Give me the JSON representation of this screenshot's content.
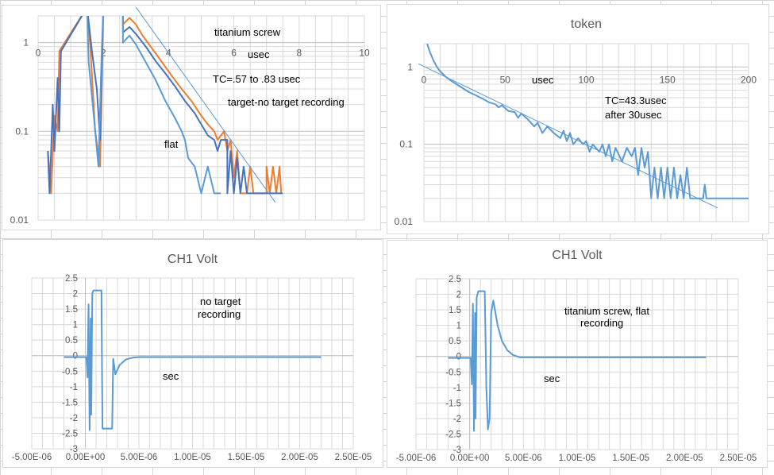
{
  "chart_data": [
    {
      "type": "line",
      "title": "",
      "xlabel": "usec",
      "ylabel": "",
      "xlim": [
        0,
        10
      ],
      "ylim": [
        0.01,
        2
      ],
      "yscale": "log",
      "xticks": [
        "0",
        "2",
        "4",
        "6",
        "8",
        "10"
      ],
      "yticks": [
        "0.01",
        "0.1",
        "1"
      ],
      "grid": true,
      "annotations": [
        "titanium screw",
        "usec",
        "TC=.57 to .83 usec",
        "target-no target recording",
        "flat"
      ],
      "colors": {
        "orange": "#ed7d31",
        "dark_blue": "#4472c4",
        "light_blue": "#5b9bd5"
      },
      "series": [
        {
          "color": "#ed7d31",
          "points": [
            [
              0.3,
              0.06
            ],
            [
              0.4,
              0.02
            ],
            [
              0.5,
              0.15
            ],
            [
              0.6,
              0.1
            ],
            [
              0.65,
              0.8
            ],
            [
              1.5,
              2.5
            ],
            [
              1.6,
              0.9
            ],
            [
              1.75,
              0.1
            ],
            [
              1.9,
              0.04
            ],
            [
              2.0,
              2.5
            ],
            [
              2.6,
              2.5
            ],
            [
              2.6,
              1.6
            ],
            [
              2.8,
              1.9
            ],
            [
              3.0,
              1.6
            ],
            [
              3.2,
              1.2
            ],
            [
              3.5,
              0.85
            ],
            [
              3.8,
              0.6
            ],
            [
              4.1,
              0.42
            ],
            [
              4.4,
              0.3
            ],
            [
              4.7,
              0.22
            ],
            [
              5.0,
              0.15
            ],
            [
              5.2,
              0.12
            ],
            [
              5.4,
              0.1
            ],
            [
              5.5,
              0.08
            ],
            [
              5.7,
              0.1
            ],
            [
              5.8,
              0.06
            ],
            [
              5.9,
              0.08
            ],
            [
              6.0,
              0.03
            ],
            [
              6.1,
              0.06
            ],
            [
              6.2,
              0.02
            ],
            [
              6.4,
              0.02
            ],
            [
              6.5,
              0.04
            ],
            [
              6.6,
              0.02
            ],
            [
              7.0,
              0.02
            ],
            [
              7.0,
              0.04
            ],
            [
              7.1,
              0.02
            ],
            [
              7.2,
              0.04
            ],
            [
              7.3,
              0.02
            ],
            [
              7.4,
              0.04
            ],
            [
              7.45,
              0.02
            ]
          ]
        },
        {
          "color": "#4472c4",
          "points": [
            [
              0.3,
              0.06
            ],
            [
              0.35,
              0.02
            ],
            [
              0.4,
              0.06
            ],
            [
              0.45,
              0.2
            ],
            [
              0.5,
              0.06
            ],
            [
              0.6,
              0.4
            ],
            [
              0.65,
              0.1
            ],
            [
              0.7,
              0.8
            ],
            [
              1.5,
              2.5
            ],
            [
              1.65,
              0.8
            ],
            [
              1.8,
              0.3
            ],
            [
              1.9,
              0.08
            ],
            [
              2.0,
              2.5
            ],
            [
              2.6,
              2.5
            ],
            [
              2.6,
              1.3
            ],
            [
              2.8,
              1.5
            ],
            [
              3.0,
              1.25
            ],
            [
              3.3,
              0.9
            ],
            [
              3.6,
              0.62
            ],
            [
              3.9,
              0.45
            ],
            [
              4.2,
              0.32
            ],
            [
              4.5,
              0.22
            ],
            [
              4.8,
              0.16
            ],
            [
              5.0,
              0.12
            ],
            [
              5.2,
              0.09
            ],
            [
              5.4,
              0.08
            ],
            [
              5.5,
              0.06
            ],
            [
              5.6,
              0.08
            ],
            [
              5.8,
              0.08
            ],
            [
              5.8,
              0.02
            ],
            [
              5.9,
              0.06
            ],
            [
              6.0,
              0.02
            ],
            [
              6.1,
              0.05
            ],
            [
              6.2,
              0.02
            ],
            [
              6.3,
              0.04
            ],
            [
              6.4,
              0.02
            ],
            [
              7.5,
              0.02
            ]
          ]
        },
        {
          "color": "#5b9bd5",
          "points": [
            [
              1.5,
              2.5
            ],
            [
              1.55,
              0.6
            ],
            [
              1.65,
              0.25
            ],
            [
              1.75,
              0.1
            ],
            [
              1.85,
              0.04
            ],
            [
              1.95,
              0.8
            ],
            [
              2.0,
              2.5
            ],
            [
              2.6,
              2.5
            ],
            [
              2.6,
              1.0
            ],
            [
              2.8,
              1.2
            ],
            [
              3.0,
              0.95
            ],
            [
              3.3,
              0.6
            ],
            [
              3.6,
              0.38
            ],
            [
              3.9,
              0.22
            ],
            [
              4.2,
              0.14
            ],
            [
              4.4,
              0.1
            ],
            [
              4.5,
              0.08
            ],
            [
              4.6,
              0.05
            ],
            [
              4.8,
              0.04
            ],
            [
              5.0,
              0.02
            ],
            [
              5.2,
              0.04
            ],
            [
              5.4,
              0.02
            ],
            [
              5.6,
              0.02
            ]
          ]
        }
      ],
      "trendline": {
        "color": "#5b9bd5",
        "points": [
          [
            3.0,
            2.5
          ],
          [
            7.27,
            0.0158
          ]
        ]
      }
    },
    {
      "type": "line",
      "title": "token",
      "xlabel": "usec",
      "ylabel": "",
      "xlim": [
        0,
        200
      ],
      "ylim": [
        0.01,
        2
      ],
      "yscale": "log",
      "xticks": [
        "0",
        "50",
        "100",
        "150",
        "200"
      ],
      "yticks": [
        "0.01",
        "0.1",
        "1"
      ],
      "grid": true,
      "annotations": [
        "usec",
        "TC=43.3usec",
        "after 30usec"
      ],
      "series": [
        {
          "color": "#5b9bd5",
          "points": [
            [
              2,
              2.0
            ],
            [
              4,
              1.5
            ],
            [
              6,
              1.2
            ],
            [
              8,
              1.0
            ],
            [
              10,
              0.88
            ],
            [
              13,
              0.76
            ],
            [
              16,
              0.68
            ],
            [
              20,
              0.6
            ],
            [
              24,
              0.53
            ],
            [
              28,
              0.47
            ],
            [
              32,
              0.43
            ],
            [
              36,
              0.39
            ],
            [
              40,
              0.35
            ],
            [
              44,
              0.33
            ],
            [
              46,
              0.3
            ],
            [
              48,
              0.32
            ],
            [
              52,
              0.27
            ],
            [
              56,
              0.26
            ],
            [
              58,
              0.22
            ],
            [
              60,
              0.25
            ],
            [
              64,
              0.21
            ],
            [
              68,
              0.17
            ],
            [
              70,
              0.19
            ],
            [
              73,
              0.14
            ],
            [
              76,
              0.17
            ],
            [
              80,
              0.14
            ],
            [
              84,
              0.12
            ],
            [
              86,
              0.15
            ],
            [
              88,
              0.11
            ],
            [
              90,
              0.14
            ],
            [
              92,
              0.1
            ],
            [
              95,
              0.12
            ],
            [
              98,
              0.1
            ],
            [
              100,
              0.11
            ],
            [
              102,
              0.08
            ],
            [
              104,
              0.1
            ],
            [
              108,
              0.08
            ],
            [
              110,
              0.1
            ],
            [
              112,
              0.07
            ],
            [
              114,
              0.1
            ],
            [
              116,
              0.06
            ],
            [
              118,
              0.09
            ],
            [
              122,
              0.06
            ],
            [
              125,
              0.09
            ],
            [
              128,
              0.07
            ],
            [
              130,
              0.09
            ],
            [
              132,
              0.04
            ],
            [
              134,
              0.09
            ],
            [
              136,
              0.05
            ],
            [
              138,
              0.08
            ],
            [
              140,
              0.02
            ],
            [
              142,
              0.05
            ],
            [
              144,
              0.02
            ],
            [
              146,
              0.05
            ],
            [
              148,
              0.02
            ],
            [
              150,
              0.05
            ],
            [
              152,
              0.02
            ],
            [
              154,
              0.05
            ],
            [
              156,
              0.02
            ],
            [
              158,
              0.04
            ],
            [
              160,
              0.02
            ],
            [
              162,
              0.05
            ],
            [
              164,
              0.02
            ],
            [
              166,
              0.02
            ],
            [
              172,
              0.02
            ],
            [
              173,
              0.03
            ],
            [
              174,
              0.02
            ],
            [
              200,
              0.02
            ]
          ]
        }
      ],
      "trendline": {
        "color": "#5b9bd5",
        "points": [
          [
            -3.4,
            1.1
          ],
          [
            181,
            0.015
          ]
        ]
      }
    },
    {
      "type": "line",
      "title": "CH1 Volt",
      "xlabel": "sec",
      "ylabel": "",
      "xlim": [
        -5e-06,
        2.5e-05
      ],
      "ylim": [
        -3,
        2.5
      ],
      "xticks": [
        "-5.00E-06",
        "0.00E+00",
        "5.00E-06",
        "1.00E-05",
        "1.50E-05",
        "2.00E-05",
        "2.50E-05"
      ],
      "yticks": [
        "-3",
        "-2.5",
        "-2",
        "-1.5",
        "-1",
        "-0.5",
        "0",
        "0.5",
        "1",
        "1.5",
        "2",
        "2.5"
      ],
      "grid": true,
      "annotations": [
        "no target",
        "recording"
      ],
      "series": [
        {
          "color": "#5b9bd5",
          "points": [
            [
              -2e-06,
              -0.05
            ],
            [
              1e-07,
              -0.05
            ],
            [
              2e-07,
              -0.7
            ],
            [
              3e-07,
              1.65
            ],
            [
              4e-07,
              -2.4
            ],
            [
              5e-07,
              1.2
            ],
            [
              5.5e-07,
              -1.9
            ],
            [
              6.5e-07,
              2.0
            ],
            [
              7.5e-07,
              2.1
            ],
            [
              1.5e-06,
              2.1
            ],
            [
              1.6e-06,
              -2.35
            ],
            [
              2.5e-06,
              -2.35
            ],
            [
              2.6e-06,
              -0.1
            ],
            [
              2.8e-06,
              -0.6
            ],
            [
              3.2e-06,
              -0.3
            ],
            [
              3.8e-06,
              -0.12
            ],
            [
              4.5e-06,
              -0.06
            ],
            [
              5e-06,
              -0.05
            ],
            [
              2.2e-05,
              -0.05
            ]
          ]
        }
      ]
    },
    {
      "type": "line",
      "title": "CH1 Volt",
      "xlabel": "sec",
      "ylabel": "",
      "xlim": [
        -5e-06,
        2.5e-05
      ],
      "ylim": [
        -3,
        2.5
      ],
      "xticks": [
        "-5.00E-06",
        "0.00E+00",
        "5.00E-06",
        "1.00E-05",
        "1.50E-05",
        "2.00E-05",
        "2.50E-05"
      ],
      "yticks": [
        "-3",
        "-2.5",
        "-2",
        "-1.5",
        "-1",
        "-0.5",
        "0",
        "0.5",
        "1",
        "1.5",
        "2",
        "2.5"
      ],
      "grid": true,
      "annotations": [
        "titanium screw, flat",
        "recording"
      ],
      "series": [
        {
          "color": "#5b9bd5",
          "points": [
            [
              -2e-06,
              -0.05
            ],
            [
              1e-07,
              -0.05
            ],
            [
              2e-07,
              -0.9
            ],
            [
              3e-07,
              1.7
            ],
            [
              4e-07,
              -2.4
            ],
            [
              5e-07,
              1.4
            ],
            [
              5.5e-07,
              -2.0
            ],
            [
              6.5e-07,
              1.9
            ],
            [
              8e-07,
              2.1
            ],
            [
              1.4e-06,
              2.1
            ],
            [
              1.55e-06,
              -1.0
            ],
            [
              1.7e-06,
              -2.35
            ],
            [
              1.85e-06,
              -2.0
            ],
            [
              2e-06,
              1.4
            ],
            [
              2.2e-06,
              1.8
            ],
            [
              2.6e-06,
              1.0
            ],
            [
              3e-06,
              0.5
            ],
            [
              3.5e-06,
              0.2
            ],
            [
              4e-06,
              0.05
            ],
            [
              4.7e-06,
              -0.03
            ],
            [
              2.2e-05,
              -0.03
            ]
          ]
        }
      ]
    }
  ]
}
